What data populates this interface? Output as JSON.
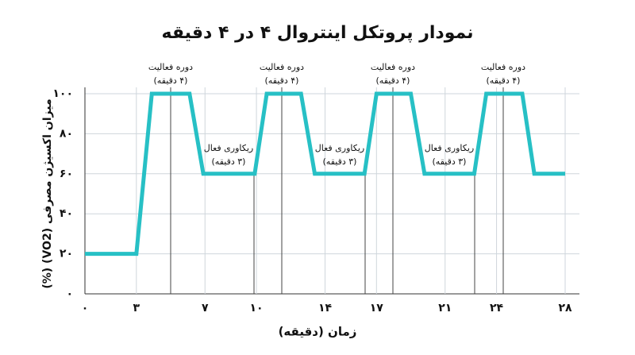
{
  "chart_data": {
    "type": "line",
    "title": "نمودار پروتکل اینتروال ۴ در ۴ دقیقه",
    "x_label": "زمان (دقیقه)",
    "y_label": "میزان اکسیژن مصرفی (VO2) (%)",
    "xlim": [
      0,
      28
    ],
    "xticks": [
      {
        "value": 0,
        "label": "۰"
      },
      {
        "value": 3,
        "label": "۳"
      },
      {
        "value": 7,
        "label": "۷"
      },
      {
        "value": 10,
        "label": "۱۰"
      },
      {
        "value": 14,
        "label": "۱۴"
      },
      {
        "value": 17,
        "label": "۱۷"
      },
      {
        "value": 21,
        "label": "۲۱"
      },
      {
        "value": 24,
        "label": "۲۴"
      },
      {
        "value": 28,
        "label": "۲۸"
      }
    ],
    "ylim": [
      0,
      100
    ],
    "yticks": [
      {
        "value": 0,
        "label": "۰"
      },
      {
        "value": 20,
        "label": "۲۰"
      },
      {
        "value": 40,
        "label": "۴۰"
      },
      {
        "value": 60,
        "label": "۶۰"
      },
      {
        "value": 80,
        "label": "۸۰"
      },
      {
        "value": 100,
        "label": "۱۰۰"
      }
    ],
    "grid": true,
    "series": [
      {
        "color": "#27c0c5",
        "x": [
          0,
          3,
          3.9,
          6.1,
          6.9,
          9.9,
          10.6,
          12.6,
          13.4,
          16.3,
          17,
          19,
          19.8,
          22.7,
          23.4,
          25.5,
          26.2,
          28
        ],
        "values": [
          20,
          20,
          100,
          100,
          60,
          60,
          100,
          100,
          60,
          60,
          100,
          100,
          60,
          60,
          100,
          100,
          60,
          60
        ]
      }
    ],
    "annotations": [
      {
        "title": "دوره فعالیت",
        "note": "(۴ دقیقه)"
      },
      {
        "title": "ریکاوری فعال",
        "note": "(۳ دقیقه)"
      },
      {
        "title": "دوره فعالیت",
        "note": "(۴ دقیقه)"
      },
      {
        "title": "ریکاوری فعال",
        "note": "(۳ دقیقه)"
      },
      {
        "title": "دوره فعالیت",
        "note": "(۴ دقیقه)"
      },
      {
        "title": "ریکاوری فعال",
        "note": "(۳ دقیقه)"
      },
      {
        "title": "دوره فعالیت",
        "note": "(۴ دقیقه)"
      }
    ]
  }
}
